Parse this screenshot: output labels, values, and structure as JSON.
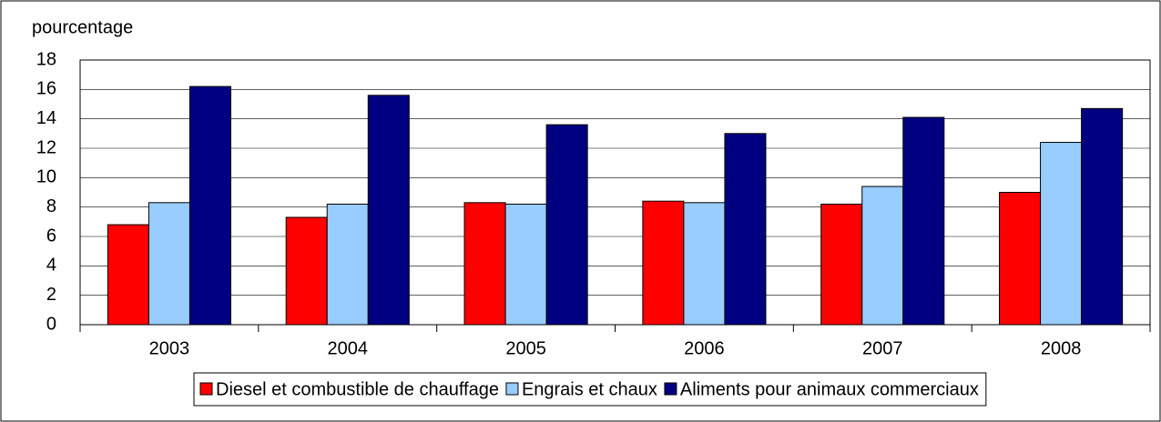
{
  "chart_data": {
    "type": "bar",
    "y_label": "pourcentage",
    "categories": [
      "2003",
      "2004",
      "2005",
      "2006",
      "2007",
      "2008"
    ],
    "series": [
      {
        "name": "Diesel et combustible de chauffage",
        "color": "#ff0000",
        "values": [
          6.8,
          7.3,
          8.3,
          8.4,
          8.2,
          9.0
        ]
      },
      {
        "name": "Engrais et chaux",
        "color": "#99ccff",
        "values": [
          8.3,
          8.2,
          8.2,
          8.3,
          9.4,
          12.4
        ]
      },
      {
        "name": "Aliments pour animaux commerciaux",
        "color": "#000080",
        "values": [
          16.2,
          15.6,
          13.6,
          13.0,
          14.1,
          14.7
        ]
      }
    ],
    "ylim": [
      0,
      18
    ],
    "yticks": [
      0,
      2,
      4,
      6,
      8,
      10,
      12,
      14,
      16,
      18
    ],
    "grid": true,
    "legend": "bottom"
  }
}
